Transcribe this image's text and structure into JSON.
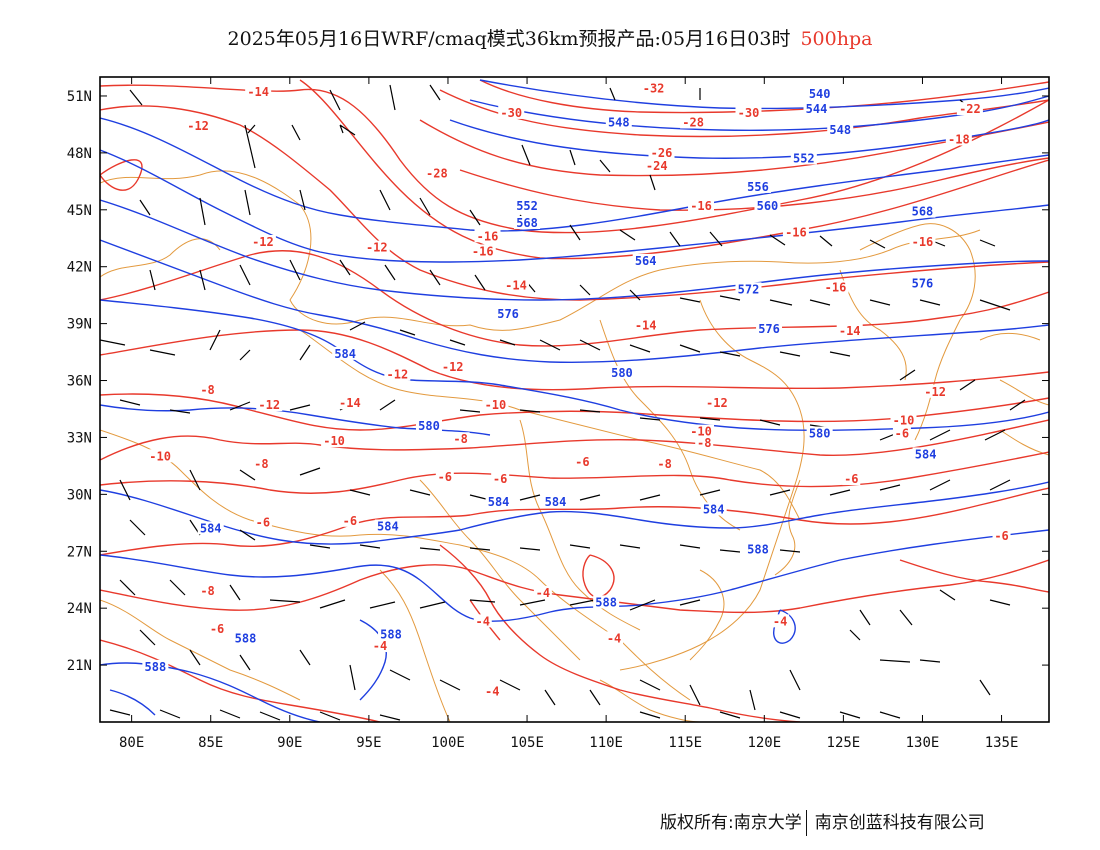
{
  "title": {
    "main": "2025年05月16日WRF/cmaq模式36km预报产品:05月16日03时",
    "level": "500hpa"
  },
  "footer": {
    "copyright": "版权所有:南京大学",
    "company": "南京创蓝科技有限公司"
  },
  "axes": {
    "lat_ticks": [
      "51N",
      "48N",
      "45N",
      "42N",
      "39N",
      "36N",
      "33N",
      "30N",
      "27N",
      "24N",
      "21N"
    ],
    "lon_ticks": [
      "80E",
      "85E",
      "90E",
      "95E",
      "100E",
      "105E",
      "110E",
      "115E",
      "120E",
      "125E",
      "130E",
      "135E"
    ],
    "lon_range": [
      78,
      138
    ],
    "lat_range": [
      18,
      52
    ]
  },
  "colors": {
    "height_contour": "#1f3fe0",
    "temperature_contour": "#e8392c",
    "boundary": "#e39a3f",
    "wind_barb": "#000000"
  },
  "labels": {
    "temperature": [
      {
        "text": "-32",
        "lon": 113,
        "lat": 51.3
      },
      {
        "text": "-30",
        "lon": 104,
        "lat": 50
      },
      {
        "text": "-30",
        "lon": 119,
        "lat": 50
      },
      {
        "text": "-28",
        "lon": 115.5,
        "lat": 49.5
      },
      {
        "text": "-28",
        "lon": 99.3,
        "lat": 46.8
      },
      {
        "text": "-26",
        "lon": 113.5,
        "lat": 47.9
      },
      {
        "text": "-24",
        "lon": 113.2,
        "lat": 47.2
      },
      {
        "text": "-22",
        "lon": 133,
        "lat": 50.2
      },
      {
        "text": "-18",
        "lon": 132.3,
        "lat": 48.6
      },
      {
        "text": "-14",
        "lon": 88,
        "lat": 51.1
      },
      {
        "text": "-12",
        "lon": 84.2,
        "lat": 49.3
      },
      {
        "text": "-16",
        "lon": 102.5,
        "lat": 43.5
      },
      {
        "text": "-16",
        "lon": 102.2,
        "lat": 42.7
      },
      {
        "text": "-16",
        "lon": 116,
        "lat": 45.1
      },
      {
        "text": "-16",
        "lon": 122,
        "lat": 43.7
      },
      {
        "text": "-16",
        "lon": 130,
        "lat": 43.2
      },
      {
        "text": "-16",
        "lon": 124.5,
        "lat": 40.8
      },
      {
        "text": "-14",
        "lon": 104.3,
        "lat": 40.9
      },
      {
        "text": "-14",
        "lon": 112.5,
        "lat": 38.8
      },
      {
        "text": "-14",
        "lon": 125.4,
        "lat": 38.5
      },
      {
        "text": "-14",
        "lon": 93.8,
        "lat": 34.7
      },
      {
        "text": "-12",
        "lon": 88.3,
        "lat": 43.2
      },
      {
        "text": "-12",
        "lon": 95.5,
        "lat": 42.9
      },
      {
        "text": "-12",
        "lon": 100.3,
        "lat": 36.6
      },
      {
        "text": "-12",
        "lon": 96.8,
        "lat": 36.2
      },
      {
        "text": "-12",
        "lon": 117,
        "lat": 34.7
      },
      {
        "text": "-12",
        "lon": 130.8,
        "lat": 35.3
      },
      {
        "text": "-12",
        "lon": 88.7,
        "lat": 34.6
      },
      {
        "text": "-10",
        "lon": 103,
        "lat": 34.6
      },
      {
        "text": "-10",
        "lon": 116,
        "lat": 33.2
      },
      {
        "text": "-10",
        "lon": 128.8,
        "lat": 33.8
      },
      {
        "text": "-10",
        "lon": 92.8,
        "lat": 32.7
      },
      {
        "text": "-10",
        "lon": 81.8,
        "lat": 31.9
      },
      {
        "text": "-8",
        "lon": 84.8,
        "lat": 35.4
      },
      {
        "text": "-8",
        "lon": 100.8,
        "lat": 32.8
      },
      {
        "text": "-8",
        "lon": 116.2,
        "lat": 32.6
      },
      {
        "text": "-8",
        "lon": 88.2,
        "lat": 31.5
      },
      {
        "text": "-8",
        "lon": 113.7,
        "lat": 31.5
      },
      {
        "text": "-6",
        "lon": 108.5,
        "lat": 31.6
      },
      {
        "text": "-6",
        "lon": 103.3,
        "lat": 30.7
      },
      {
        "text": "-6",
        "lon": 128.7,
        "lat": 33.1
      },
      {
        "text": "-6",
        "lon": 99.8,
        "lat": 30.8
      },
      {
        "text": "-6",
        "lon": 125.5,
        "lat": 30.7
      },
      {
        "text": "-6",
        "lon": 88.3,
        "lat": 28.4
      },
      {
        "text": "-6",
        "lon": 93.8,
        "lat": 28.5
      },
      {
        "text": "-6",
        "lon": 135,
        "lat": 27.7
      },
      {
        "text": "-8",
        "lon": 84.8,
        "lat": 24.8
      },
      {
        "text": "-6",
        "lon": 85.4,
        "lat": 22.8
      },
      {
        "text": "-4",
        "lon": 106,
        "lat": 24.7
      },
      {
        "text": "-4",
        "lon": 102.2,
        "lat": 23.2
      },
      {
        "text": "-4",
        "lon": 110.5,
        "lat": 22.3
      },
      {
        "text": "-4",
        "lon": 121,
        "lat": 23.2
      },
      {
        "text": "-4",
        "lon": 95.7,
        "lat": 21.9
      },
      {
        "text": "-4",
        "lon": 102.8,
        "lat": 19.5
      }
    ],
    "height": [
      {
        "text": "540",
        "lon": 123.5,
        "lat": 51
      },
      {
        "text": "544",
        "lon": 123.3,
        "lat": 50.2
      },
      {
        "text": "548",
        "lon": 110.8,
        "lat": 49.5
      },
      {
        "text": "548",
        "lon": 124.8,
        "lat": 49.1
      },
      {
        "text": "552",
        "lon": 122.5,
        "lat": 47.6
      },
      {
        "text": "552",
        "lon": 105,
        "lat": 45.1
      },
      {
        "text": "556",
        "lon": 119.6,
        "lat": 46.1
      },
      {
        "text": "560",
        "lon": 120.2,
        "lat": 45.1
      },
      {
        "text": "568",
        "lon": 130,
        "lat": 44.8
      },
      {
        "text": "564",
        "lon": 112.5,
        "lat": 42.2
      },
      {
        "text": "568",
        "lon": 105,
        "lat": 44.2
      },
      {
        "text": "572",
        "lon": 119,
        "lat": 40.7
      },
      {
        "text": "576",
        "lon": 103.8,
        "lat": 39.4
      },
      {
        "text": "576",
        "lon": 120.3,
        "lat": 38.6
      },
      {
        "text": "576",
        "lon": 130,
        "lat": 41
      },
      {
        "text": "580",
        "lon": 111,
        "lat": 36.3
      },
      {
        "text": "584",
        "lon": 93.5,
        "lat": 37.3
      },
      {
        "text": "580",
        "lon": 98.8,
        "lat": 33.5
      },
      {
        "text": "580",
        "lon": 123.5,
        "lat": 33.1
      },
      {
        "text": "584",
        "lon": 130.2,
        "lat": 32
      },
      {
        "text": "584",
        "lon": 103.2,
        "lat": 29.5
      },
      {
        "text": "584",
        "lon": 106.8,
        "lat": 29.5
      },
      {
        "text": "584",
        "lon": 116.8,
        "lat": 29.1
      },
      {
        "text": "584",
        "lon": 85,
        "lat": 28.1
      },
      {
        "text": "584",
        "lon": 96.2,
        "lat": 28.2
      },
      {
        "text": "588",
        "lon": 119.6,
        "lat": 27
      },
      {
        "text": "588",
        "lon": 110,
        "lat": 24.2
      },
      {
        "text": "588",
        "lon": 96.4,
        "lat": 22.5
      },
      {
        "text": "588",
        "lon": 87.2,
        "lat": 22.3
      },
      {
        "text": "588",
        "lon": 81.5,
        "lat": 20.8
      }
    ]
  }
}
